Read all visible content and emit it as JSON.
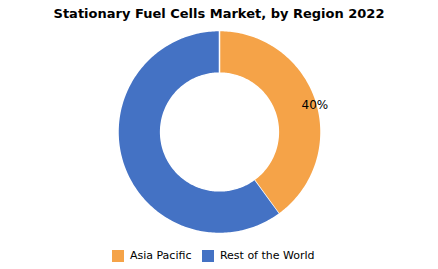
{
  "chart_data": {
    "type": "donut",
    "title": "Stationary Fuel Cells Market, by Region 2022",
    "categories": [
      "Asia Pacific",
      "Rest of the World"
    ],
    "values": [
      40,
      60
    ],
    "colors": [
      "#F5A348",
      "#4472C4"
    ],
    "annotation": "40%",
    "legend": "bottom"
  }
}
